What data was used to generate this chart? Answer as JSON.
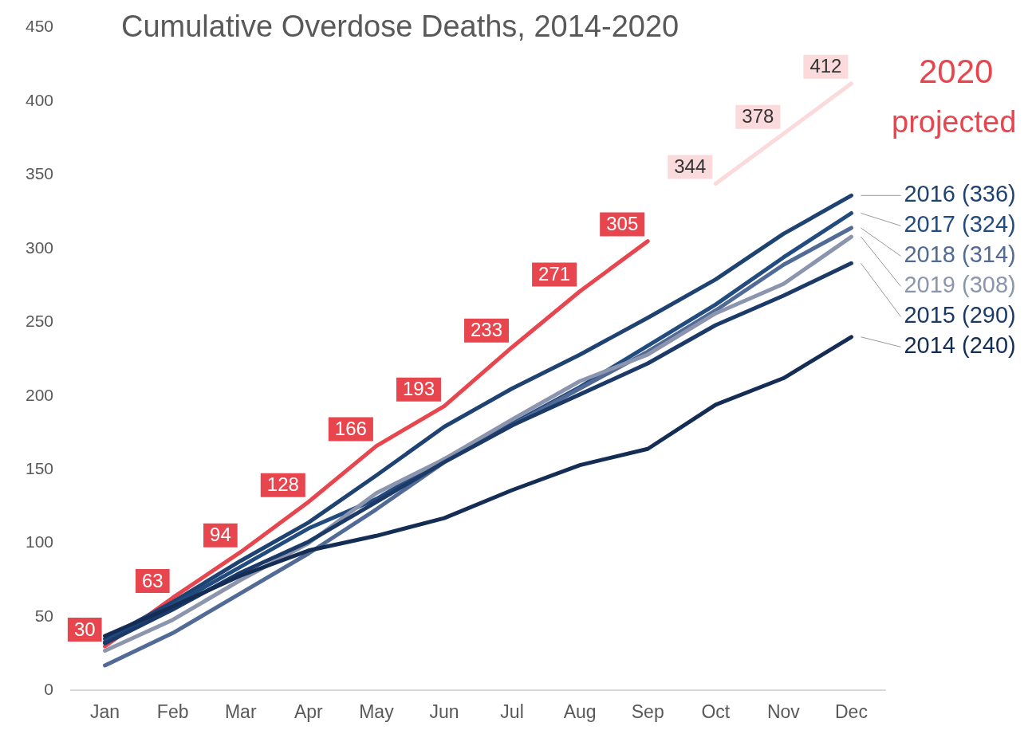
{
  "chart_data": {
    "type": "line",
    "title": "Cumulative Overdose Deaths, 2014-2020",
    "categories": [
      "Jan",
      "Feb",
      "Mar",
      "Apr",
      "May",
      "Jun",
      "Jul",
      "Aug",
      "Sep",
      "Oct",
      "Nov",
      "Dec"
    ],
    "ylim": [
      0,
      450
    ],
    "yticks": [
      0,
      50,
      100,
      150,
      200,
      250,
      300,
      350,
      400,
      450
    ],
    "grid": false,
    "legend": false,
    "marker": "none",
    "line_style": "solid",
    "series": [
      {
        "name": "2014 (240)",
        "color": "#142d55",
        "values": [
          37,
          57,
          78,
          95,
          105,
          117,
          136,
          153,
          164,
          194,
          212,
          240
        ]
      },
      {
        "name": "2015 (290)",
        "color": "#1c3a68",
        "values": [
          32,
          55,
          80,
          101,
          128,
          155,
          180,
          201,
          222,
          248,
          268,
          290
        ]
      },
      {
        "name": "2019 (308)",
        "color": "#8b95ad",
        "values": [
          27,
          48,
          75,
          100,
          134,
          157,
          184,
          210,
          228,
          256,
          276,
          308
        ]
      },
      {
        "name": "2018 (314)",
        "color": "#526b96",
        "values": [
          17,
          39,
          66,
          93,
          123,
          155,
          180,
          205,
          230,
          258,
          289,
          314
        ]
      },
      {
        "name": "2017 (324)",
        "color": "#224b80",
        "values": [
          33,
          58,
          84,
          110,
          130,
          157,
          181,
          206,
          234,
          262,
          294,
          324
        ]
      },
      {
        "name": "2016 (336)",
        "color": "#1e4272",
        "values": [
          35,
          60,
          88,
          114,
          146,
          179,
          205,
          228,
          253,
          279,
          310,
          336
        ]
      },
      {
        "color": "#e8464e",
        "values": [
          30,
          63,
          94,
          128,
          166,
          193,
          233,
          271,
          305,
          null,
          null,
          null
        ],
        "value_labels": [
          "30",
          "63",
          "94",
          "128",
          "166",
          "193",
          "233",
          "271",
          "305",
          null,
          null,
          null
        ]
      },
      {
        "color": "#fadadb",
        "values": [
          null,
          null,
          null,
          null,
          null,
          null,
          null,
          null,
          null,
          344,
          378,
          412
        ],
        "value_labels": [
          null,
          null,
          null,
          null,
          null,
          null,
          null,
          null,
          null,
          "344",
          "378",
          "412"
        ]
      }
    ],
    "annotations": [
      "2020",
      "projected"
    ]
  }
}
